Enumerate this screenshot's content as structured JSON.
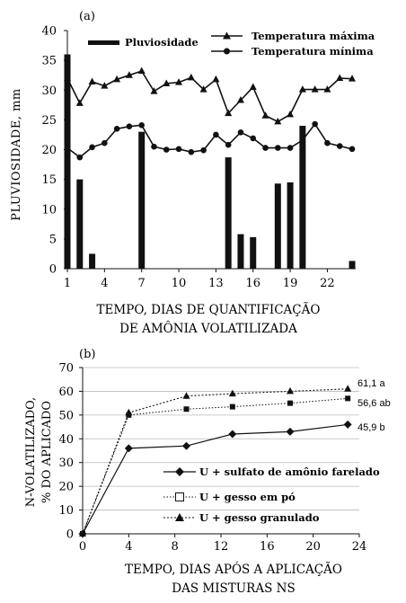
{
  "chart_data": [
    {
      "panel_label": "(a)",
      "type": "bar+line",
      "xlabel": "TEMPO, DIAS DE QUANTIFICAÇÃO",
      "xlabel2": "DE AMÔNIA VOLATILIZADA",
      "ylabel": "PLUVIOSIDADE, mm",
      "ylim": [
        0,
        40
      ],
      "xlim": [
        1,
        24
      ],
      "y_ticks": [
        "0",
        "5",
        "10",
        "15",
        "20",
        "25",
        "30",
        "35",
        "40"
      ],
      "x_ticks": [
        "1",
        "4",
        "7",
        "10",
        "13",
        "16",
        "19",
        "22"
      ],
      "legend": {
        "bars": "Pluviosidade",
        "max": "Temperatura máxima",
        "min": "Temperatura mínima"
      },
      "x": [
        1,
        2,
        3,
        4,
        5,
        6,
        7,
        8,
        9,
        10,
        11,
        12,
        13,
        14,
        15,
        16,
        17,
        18,
        19,
        20,
        21,
        22,
        23,
        24
      ],
      "bars": {
        "name": "Pluviosidade",
        "values": [
          36,
          15,
          2.5,
          0,
          0,
          0,
          23,
          0,
          0,
          0,
          0,
          0,
          0,
          18.7,
          5.8,
          5.3,
          0,
          14.3,
          14.5,
          24,
          0,
          0,
          0,
          1.3
        ]
      },
      "series": [
        {
          "name": "Temperatura máxima",
          "values": [
            32,
            27.8,
            31.4,
            30.7,
            31.8,
            32.5,
            33.2,
            29.8,
            31.1,
            31.3,
            32.1,
            30.1,
            31.8,
            26.1,
            28.3,
            30.5,
            25.7,
            24.7,
            25.9,
            30.1,
            30.1,
            30.1,
            32,
            31.9
          ]
        },
        {
          "name": "Temperatura mínima",
          "values": [
            20.3,
            18.7,
            20.4,
            21.1,
            23.5,
            23.9,
            24.1,
            20.5,
            20,
            20.1,
            19.6,
            19.9,
            22.5,
            20.8,
            22.9,
            21.9,
            20.3,
            20.3,
            20.3,
            21.6,
            24.3,
            21.1,
            20.6,
            20.1
          ]
        }
      ]
    },
    {
      "panel_label": "(b)",
      "type": "line",
      "xlabel": "TEMPO, DIAS APÓS A APLICAÇÃO",
      "xlabel2": "DAS MISTURAS NS",
      "ylabel": "N-VOLATILIZADO,",
      "ylabel2": "% DO APLICADO",
      "ylim": [
        0,
        70
      ],
      "xlim": [
        0,
        24
      ],
      "y_ticks": [
        "0",
        "10",
        "20",
        "30",
        "40",
        "50",
        "60",
        "70"
      ],
      "x_ticks": [
        "0",
        "4",
        "8",
        "12",
        "16",
        "20",
        "24"
      ],
      "series": [
        {
          "name": "U + sulfato de amônio farelado",
          "x": [
            0,
            4,
            9,
            13,
            18,
            23
          ],
          "values": [
            0,
            36,
            37,
            42,
            43,
            46
          ],
          "end_label": "45,9 b"
        },
        {
          "name": "U + gesso em pó",
          "x": [
            0,
            4,
            9,
            13,
            18,
            23
          ],
          "values": [
            0,
            50,
            52.5,
            53.5,
            55,
            57
          ],
          "end_label": "56,6 ab"
        },
        {
          "name": "U + gesso granulado",
          "x": [
            0,
            4,
            9,
            13,
            18,
            23
          ],
          "values": [
            0,
            51,
            58,
            59,
            60,
            61
          ],
          "end_label": "61,1 a"
        }
      ]
    }
  ]
}
